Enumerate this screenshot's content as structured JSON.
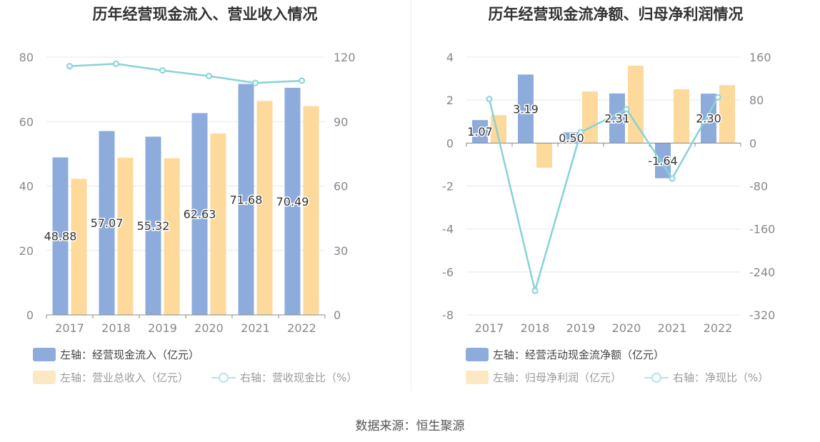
{
  "source": "数据来源：恒生聚源",
  "colors": {
    "blue": "#8eacdb",
    "orange": "#fdd99b",
    "line": "#86d3d7",
    "axis": "#888888",
    "grid": "#e6e8ee",
    "label": "#333333"
  },
  "chart_data": [
    {
      "type": "bar",
      "title": "历年经营现金流入、营业收入情况",
      "categories": [
        "2017",
        "2018",
        "2019",
        "2020",
        "2021",
        "2022"
      ],
      "y_left": {
        "ticks": [
          "80",
          "60",
          "40",
          "20",
          "0"
        ],
        "range": [
          0,
          80
        ]
      },
      "y_right": {
        "ticks": [
          "120",
          "90",
          "60",
          "30",
          "0"
        ],
        "range": [
          0,
          120
        ]
      },
      "series": [
        {
          "name": "左轴：经营现金流入（亿元）",
          "axis": "left",
          "kind": "bar",
          "color": "#8eacdb",
          "values": [
            48.88,
            57.07,
            55.32,
            62.63,
            71.68,
            70.49
          ],
          "labels": [
            "48.88",
            "57.07",
            "55.32",
            "62.63",
            "71.68",
            "70.49"
          ]
        },
        {
          "name": "左轴：营业总收入（亿元）",
          "axis": "left",
          "kind": "bar",
          "color": "#fdd99b",
          "values": [
            42.2,
            48.8,
            48.6,
            56.3,
            66.4,
            64.8
          ]
        },
        {
          "name": "右轴：营收现金比（%）",
          "axis": "right",
          "kind": "line",
          "color": "#86d3d7",
          "values": [
            115.8,
            116.9,
            113.8,
            111.2,
            108,
            109
          ]
        }
      ],
      "grid": true,
      "legend": "bottom"
    },
    {
      "type": "bar",
      "title": "历年经营现金流净额、归母净利润情况",
      "categories": [
        "2017",
        "2018",
        "2019",
        "2020",
        "2021",
        "2022"
      ],
      "y_left": {
        "ticks": [
          "4",
          "2",
          "0",
          "-2",
          "-4",
          "-6",
          "-8"
        ],
        "range": [
          -8,
          4
        ]
      },
      "y_right": {
        "ticks": [
          "160",
          "80",
          "0",
          "-80",
          "-160",
          "-240",
          "-320"
        ],
        "range": [
          -320,
          160
        ]
      },
      "series": [
        {
          "name": "左轴：经营活动现金流净额（亿元）",
          "axis": "left",
          "kind": "bar",
          "color": "#8eacdb",
          "values": [
            1.07,
            3.19,
            0.5,
            2.31,
            -1.64,
            2.3
          ],
          "labels": [
            "1.07",
            "3.19",
            "0.50",
            "2.31",
            "-1.64",
            "2.30"
          ]
        },
        {
          "name": "左轴：归母净利润（亿元）",
          "axis": "left",
          "kind": "bar",
          "color": "#fdd99b",
          "values": [
            1.3,
            -1.15,
            2.4,
            3.6,
            2.5,
            2.7
          ]
        },
        {
          "name": "右轴：净现比（%）",
          "axis": "right",
          "kind": "line",
          "color": "#86d3d7",
          "values": [
            82,
            -275,
            20,
            63,
            -66,
            85
          ]
        }
      ],
      "grid": true,
      "legend": "bottom"
    }
  ]
}
